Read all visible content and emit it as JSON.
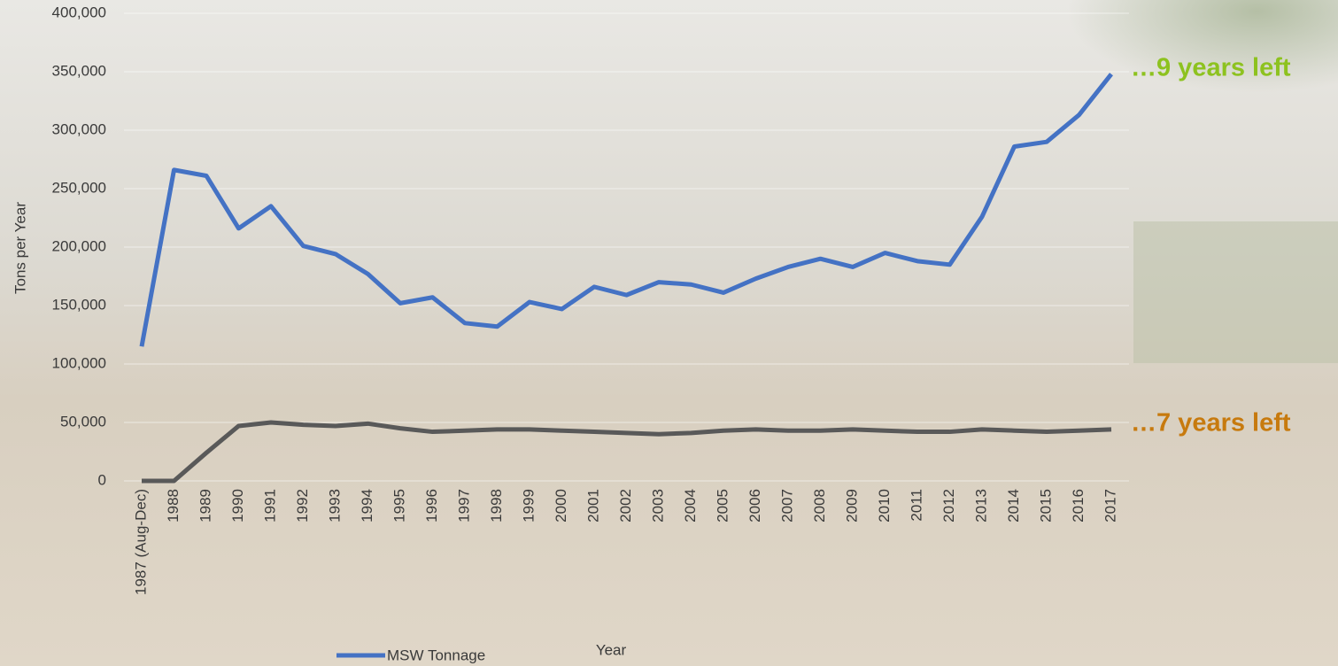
{
  "chart_data": {
    "type": "line",
    "x_label": "Year",
    "y_label": "Tons per Year",
    "categories": [
      "1987 (Aug-Dec)",
      "1988",
      "1989",
      "1990",
      "1991",
      "1992",
      "1993",
      "1994",
      "1995",
      "1996",
      "1997",
      "1998",
      "1999",
      "2000",
      "2001",
      "2002",
      "2003",
      "2004",
      "2005",
      "2006",
      "2007",
      "2008",
      "2009",
      "2010",
      "2011",
      "2012",
      "2013",
      "2014",
      "2015",
      "2016",
      "2017"
    ],
    "series": [
      {
        "name": "MSW Tonnage",
        "color": "#4472c4",
        "values": [
          115000,
          266000,
          261000,
          216000,
          235000,
          201000,
          194000,
          177000,
          152000,
          157000,
          135000,
          132000,
          153000,
          147000,
          166000,
          159000,
          170000,
          168000,
          161000,
          173000,
          183000,
          190000,
          183000,
          195000,
          188000,
          185000,
          226000,
          286000,
          290000,
          313000,
          348000
        ]
      },
      {
        "color": "#595959",
        "values": [
          0,
          0,
          24000,
          47000,
          50000,
          48000,
          47000,
          49000,
          45000,
          42000,
          43000,
          44000,
          44000,
          43000,
          42000,
          41000,
          40000,
          41000,
          43000,
          44000,
          43000,
          43000,
          44000,
          43000,
          42000,
          42000,
          44000,
          43000,
          42000,
          43000,
          44000
        ]
      }
    ],
    "annotations": [
      {
        "text": "…9 years left",
        "color": "#8dc21f"
      },
      {
        "text": "…7 years left",
        "color": "#c77a0e"
      }
    ],
    "ylim": [
      0,
      400000
    ],
    "yticks": [
      0,
      {
        "value": 50000,
        "label": "50,000"
      },
      {
        "value": 100000,
        "label": "100,000"
      },
      {
        "value": 150000,
        "label": "150,000"
      },
      {
        "value": 200000,
        "label": "200,000"
      },
      {
        "value": 250000,
        "label": "250,000"
      },
      {
        "value": 300000,
        "label": "300,000"
      },
      {
        "value": 350000,
        "label": "350,000"
      },
      {
        "value": 400000,
        "label": "400,000"
      }
    ],
    "grid": true,
    "legend": "bottom"
  }
}
